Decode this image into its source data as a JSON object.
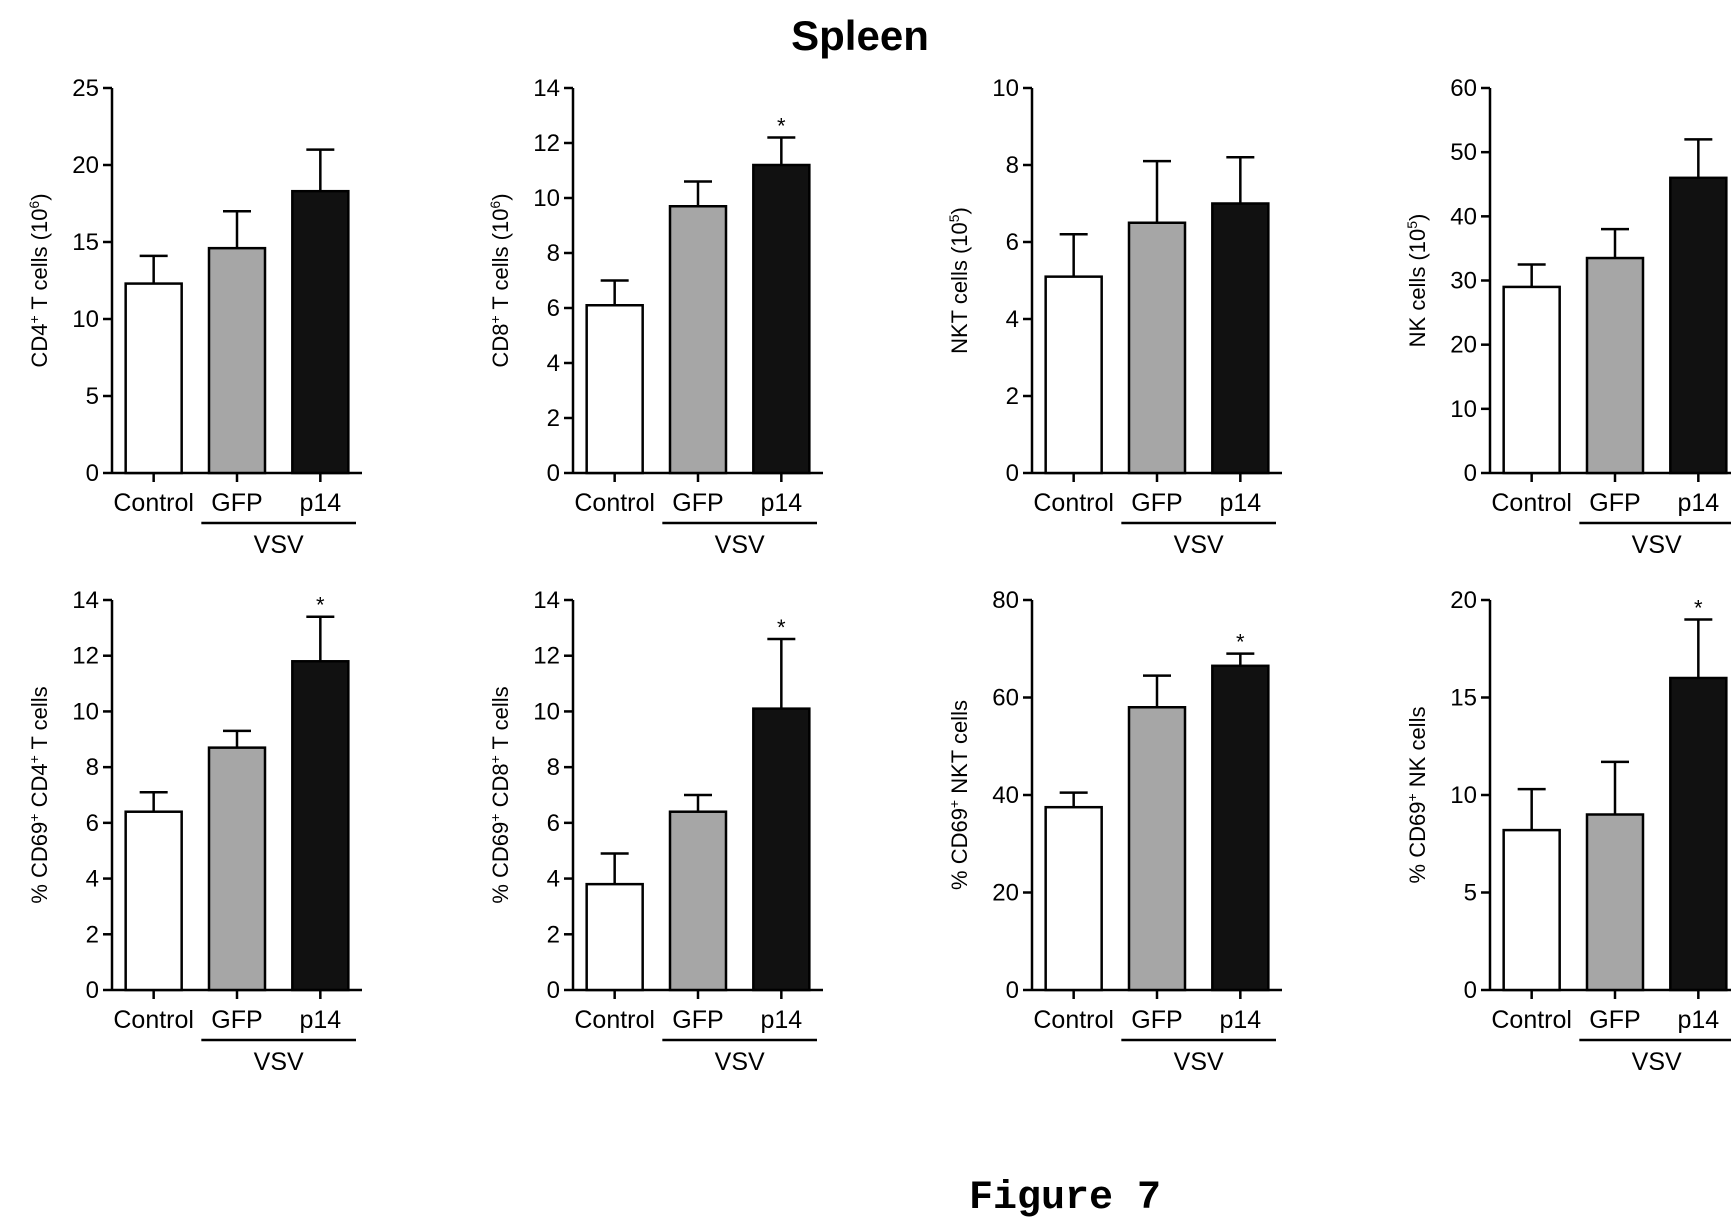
{
  "figure_title": "Spleen",
  "caption": "Figure 7",
  "colors": {
    "control": "#ffffff",
    "gfp": "#a6a6a6",
    "p14": "#111111",
    "stroke": "#000000"
  },
  "chart_data": [
    {
      "type": "bar",
      "ylabel_parts": [
        {
          "t": "CD4"
        },
        {
          "t": "+",
          "sup": true
        },
        {
          "t": " T cells (10"
        },
        {
          "t": "6",
          "sup": true
        },
        {
          "t": ")"
        }
      ],
      "ylim": [
        0,
        25
      ],
      "yticks": [
        0,
        5,
        10,
        15,
        20,
        25
      ],
      "categories": [
        "Control",
        "GFP",
        "p14"
      ],
      "group_label": "VSV",
      "values": [
        12.3,
        14.6,
        18.3
      ],
      "errors": [
        1.8,
        2.4,
        2.7
      ],
      "significant": [
        false,
        false,
        false
      ]
    },
    {
      "type": "bar",
      "ylabel_parts": [
        {
          "t": "CD8"
        },
        {
          "t": "+",
          "sup": true
        },
        {
          "t": " T cells (10"
        },
        {
          "t": "6",
          "sup": true
        },
        {
          "t": ")"
        }
      ],
      "ylim": [
        0,
        14
      ],
      "yticks": [
        0,
        2,
        4,
        6,
        8,
        10,
        12,
        14
      ],
      "categories": [
        "Control",
        "GFP",
        "p14"
      ],
      "group_label": "VSV",
      "values": [
        6.1,
        9.7,
        11.2
      ],
      "errors": [
        0.9,
        0.9,
        1.0
      ],
      "significant": [
        false,
        false,
        true
      ]
    },
    {
      "type": "bar",
      "ylabel_parts": [
        {
          "t": "NKT cells (10"
        },
        {
          "t": "5",
          "sup": true
        },
        {
          "t": ")"
        }
      ],
      "ylim": [
        0,
        10
      ],
      "yticks": [
        0,
        2,
        4,
        6,
        8,
        10
      ],
      "categories": [
        "Control",
        "GFP",
        "p14"
      ],
      "group_label": "VSV",
      "values": [
        5.1,
        6.5,
        7.0
      ],
      "errors": [
        1.1,
        1.6,
        1.2
      ],
      "significant": [
        false,
        false,
        false
      ]
    },
    {
      "type": "bar",
      "ylabel_parts": [
        {
          "t": "NK cells (10"
        },
        {
          "t": "5",
          "sup": true
        },
        {
          "t": ")"
        }
      ],
      "ylim": [
        0,
        60
      ],
      "yticks": [
        0,
        10,
        20,
        30,
        40,
        50,
        60
      ],
      "categories": [
        "Control",
        "GFP",
        "p14"
      ],
      "group_label": "VSV",
      "values": [
        29,
        33.5,
        46
      ],
      "errors": [
        3.5,
        4.5,
        6
      ],
      "significant": [
        false,
        false,
        false
      ]
    },
    {
      "type": "bar",
      "ylabel_parts": [
        {
          "t": "% CD69"
        },
        {
          "t": "+",
          "sup": true
        },
        {
          "t": " CD4"
        },
        {
          "t": "+",
          "sup": true
        },
        {
          "t": " T cells"
        }
      ],
      "ylim": [
        0,
        14
      ],
      "yticks": [
        0,
        2,
        4,
        6,
        8,
        10,
        12,
        14
      ],
      "categories": [
        "Control",
        "GFP",
        "p14"
      ],
      "group_label": "VSV",
      "values": [
        6.4,
        8.7,
        11.8
      ],
      "errors": [
        0.7,
        0.6,
        1.6
      ],
      "significant": [
        false,
        false,
        true
      ]
    },
    {
      "type": "bar",
      "ylabel_parts": [
        {
          "t": "% CD69"
        },
        {
          "t": "+",
          "sup": true
        },
        {
          "t": " CD8"
        },
        {
          "t": "+",
          "sup": true
        },
        {
          "t": " T cells"
        }
      ],
      "ylim": [
        0,
        14
      ],
      "yticks": [
        0,
        2,
        4,
        6,
        8,
        10,
        12,
        14
      ],
      "categories": [
        "Control",
        "GFP",
        "p14"
      ],
      "group_label": "VSV",
      "values": [
        3.8,
        6.4,
        10.1
      ],
      "errors": [
        1.1,
        0.6,
        2.5
      ],
      "significant": [
        false,
        false,
        true
      ]
    },
    {
      "type": "bar",
      "ylabel_parts": [
        {
          "t": "% CD69"
        },
        {
          "t": "+",
          "sup": true
        },
        {
          "t": " NKT cells"
        }
      ],
      "ylim": [
        0,
        80
      ],
      "yticks": [
        0,
        20,
        40,
        60,
        80
      ],
      "categories": [
        "Control",
        "GFP",
        "p14"
      ],
      "group_label": "VSV",
      "values": [
        37.5,
        58,
        66.5
      ],
      "errors": [
        3,
        6.5,
        2.5
      ],
      "significant": [
        false,
        false,
        true
      ]
    },
    {
      "type": "bar",
      "ylabel_parts": [
        {
          "t": "% CD69"
        },
        {
          "t": "+",
          "sup": true
        },
        {
          "t": " NK cells"
        }
      ],
      "ylim": [
        0,
        20
      ],
      "yticks": [
        0,
        5,
        10,
        15,
        20
      ],
      "categories": [
        "Control",
        "GFP",
        "p14"
      ],
      "group_label": "VSV",
      "values": [
        8.2,
        9.0,
        16.0
      ],
      "errors": [
        2.1,
        2.7,
        3.0
      ],
      "significant": [
        false,
        false,
        true
      ]
    }
  ]
}
